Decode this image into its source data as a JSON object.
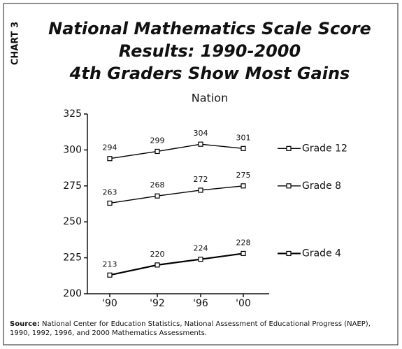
{
  "chart_data": {
    "type": "line",
    "side_label": "CHART 3",
    "title": [
      "National Mathematics Scale Score",
      "Results: 1990-2000",
      "4th Graders Show Most Gains"
    ],
    "subtitle": "Nation",
    "categories": [
      "'90",
      "'92",
      "'96",
      "'00"
    ],
    "series": [
      {
        "name": "Grade 12",
        "color": "#000000",
        "values": [
          294,
          299,
          304,
          301
        ]
      },
      {
        "name": "Grade 8",
        "color": "#000000",
        "values": [
          263,
          268,
          272,
          275
        ]
      },
      {
        "name": "Grade 4",
        "color": "#000000",
        "values": [
          213,
          220,
          224,
          228
        ]
      }
    ],
    "ylim": [
      200,
      325
    ],
    "yticks": [
      200,
      225,
      250,
      275,
      300,
      325
    ],
    "source_label": "Source:",
    "source": "National Center for Education Statistics, National Assessment of Educational Progress (NAEP), 1990, 1992, 1996, and 2000 Mathematics Assessments."
  }
}
